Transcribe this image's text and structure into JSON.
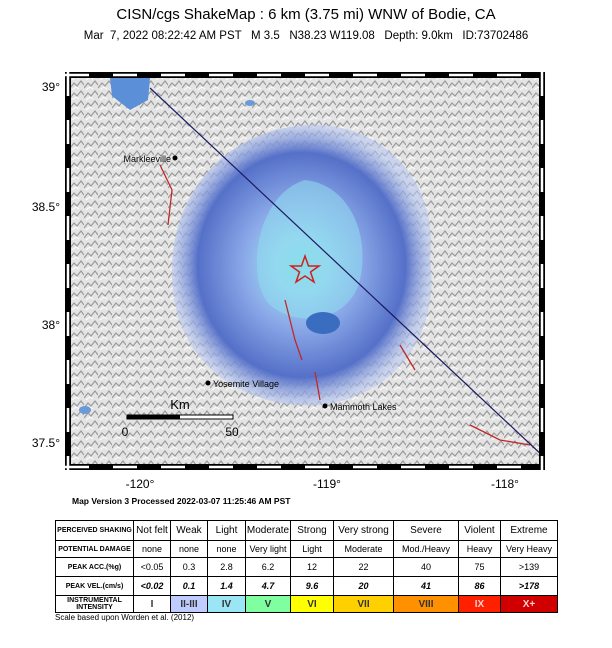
{
  "header": {
    "title": "CISN/cgs ShakeMap : 6 km (3.75 mi) WNW of Bodie, CA",
    "subtitle": "Mar  7, 2022 08:22:42 AM PST   M 3.5   N38.23 W119.08   Depth: 9.0km   ID:73702486"
  },
  "map": {
    "lat_labels": [
      "39°",
      "38.5°",
      "38°",
      "37.5°"
    ],
    "lon_labels": [
      "-120°",
      "-119°",
      "-118°"
    ],
    "places": [
      "Markleeville",
      "Yosemite Village",
      "Mammoth Lakes"
    ],
    "scale": {
      "unit": "Km",
      "start": "0",
      "end": "50"
    }
  },
  "version_note": "Map Version 3 Processed 2022-03-07 11:25:46 AM PST",
  "legend_table": {
    "row_headers": [
      "PERCEIVED SHAKING",
      "POTENTIAL DAMAGE",
      "PEAK ACC.(%g)",
      "PEAK VEL.(cm/s)",
      "INSTRUMENTAL INTENSITY"
    ],
    "columns": [
      {
        "shaking": "Not felt",
        "damage": "none",
        "acc": "<0.05",
        "vel": "<0.02",
        "intensity": "I",
        "color": "#ffffff"
      },
      {
        "shaking": "Weak",
        "damage": "none",
        "acc": "0.3",
        "vel": "0.1",
        "intensity": "II-III",
        "color": "#bfccff"
      },
      {
        "shaking": "Light",
        "damage": "none",
        "acc": "2.8",
        "vel": "1.4",
        "intensity": "IV",
        "color": "#9ae6f5"
      },
      {
        "shaking": "Moderate",
        "damage": "Very light",
        "acc": "6.2",
        "vel": "4.7",
        "intensity": "V",
        "color": "#80ffa0"
      },
      {
        "shaking": "Strong",
        "damage": "Light",
        "acc": "12",
        "vel": "9.6",
        "intensity": "VI",
        "color": "#ffff00"
      },
      {
        "shaking": "Very strong",
        "damage": "Moderate",
        "acc": "22",
        "vel": "20",
        "intensity": "VII",
        "color": "#ffd000"
      },
      {
        "shaking": "Severe",
        "damage": "Mod./Heavy",
        "acc": "40",
        "vel": "41",
        "intensity": "VIII",
        "color": "#ff9000"
      },
      {
        "shaking": "Violent",
        "damage": "Heavy",
        "acc": "75",
        "vel": "86",
        "intensity": "IX",
        "color": "#ff2000"
      },
      {
        "shaking": "Extreme",
        "damage": "Very Heavy",
        "acc": ">139",
        "vel": ">178",
        "intensity": "X+",
        "color": "#d00000"
      }
    ]
  },
  "footnote": "Scale based upon Worden et al. (2012)"
}
